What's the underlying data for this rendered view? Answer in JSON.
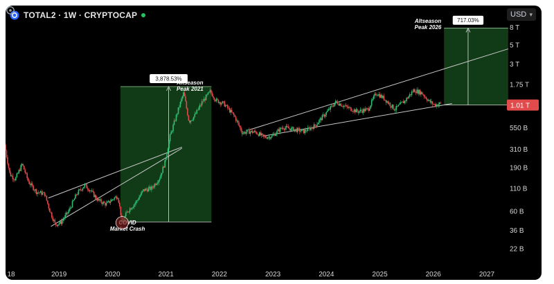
{
  "header": {
    "symbol_title": "TOTAL2 · 1W · CRYPTOCAP",
    "currency": "USD"
  },
  "chart_data": {
    "type": "candlestick",
    "title": "TOTAL2 · 1W · CRYPTOCAP",
    "y_scale": "log",
    "y_unit": "USD",
    "ylim": [
      15000000000,
      9500000000000
    ],
    "x_ticks": [
      "18",
      "2019",
      "2020",
      "2021",
      "2022",
      "2023",
      "2024",
      "2025",
      "2026",
      "2027"
    ],
    "y_ticks": [
      {
        "label": "8 T",
        "value": 8000000000000
      },
      {
        "label": "5 T",
        "value": 5000000000000
      },
      {
        "label": "3 T",
        "value": 3000000000000
      },
      {
        "label": "1.75 T",
        "value": 1750000000000
      },
      {
        "label": "550 B",
        "value": 550000000000
      },
      {
        "label": "310 B",
        "value": 310000000000
      },
      {
        "label": "190 B",
        "value": 190000000000
      },
      {
        "label": "110 B",
        "value": 110000000000
      },
      {
        "label": "60 B",
        "value": 60000000000
      },
      {
        "label": "36 B",
        "value": 36000000000
      },
      {
        "label": "22 B",
        "value": 22000000000
      }
    ],
    "current_price": {
      "label": "1.01 T",
      "value": 1010000000000
    },
    "price_path": [
      [
        2018.0,
        350000000000
      ],
      [
        2018.1,
        160000000000
      ],
      [
        2018.2,
        140000000000
      ],
      [
        2018.33,
        210000000000
      ],
      [
        2018.45,
        130000000000
      ],
      [
        2018.6,
        100000000000
      ],
      [
        2018.75,
        95000000000
      ],
      [
        2018.85,
        60000000000
      ],
      [
        2018.95,
        42000000000
      ],
      [
        2019.05,
        44000000000
      ],
      [
        2019.2,
        60000000000
      ],
      [
        2019.35,
        95000000000
      ],
      [
        2019.5,
        120000000000
      ],
      [
        2019.6,
        105000000000
      ],
      [
        2019.75,
        80000000000
      ],
      [
        2019.9,
        72000000000
      ],
      [
        2020.05,
        85000000000
      ],
      [
        2020.12,
        90000000000
      ],
      [
        2020.2,
        44000000000
      ],
      [
        2020.3,
        60000000000
      ],
      [
        2020.45,
        75000000000
      ],
      [
        2020.6,
        105000000000
      ],
      [
        2020.75,
        110000000000
      ],
      [
        2020.9,
        145000000000
      ],
      [
        2021.0,
        220000000000
      ],
      [
        2021.1,
        450000000000
      ],
      [
        2021.25,
        900000000000
      ],
      [
        2021.35,
        1400000000000
      ],
      [
        2021.45,
        650000000000
      ],
      [
        2021.55,
        750000000000
      ],
      [
        2021.7,
        1100000000000
      ],
      [
        2021.85,
        1450000000000
      ],
      [
        2021.95,
        1150000000000
      ],
      [
        2022.1,
        1050000000000
      ],
      [
        2022.3,
        750000000000
      ],
      [
        2022.45,
        480000000000
      ],
      [
        2022.55,
        500000000000
      ],
      [
        2022.7,
        490000000000
      ],
      [
        2022.85,
        430000000000
      ],
      [
        2023.0,
        440000000000
      ],
      [
        2023.2,
        560000000000
      ],
      [
        2023.4,
        530000000000
      ],
      [
        2023.6,
        500000000000
      ],
      [
        2023.8,
        580000000000
      ],
      [
        2024.0,
        800000000000
      ],
      [
        2024.2,
        1100000000000
      ],
      [
        2024.4,
        950000000000
      ],
      [
        2024.6,
        850000000000
      ],
      [
        2024.8,
        900000000000
      ],
      [
        2024.95,
        1400000000000
      ],
      [
        2025.1,
        1200000000000
      ],
      [
        2025.3,
        900000000000
      ],
      [
        2025.5,
        1150000000000
      ],
      [
        2025.65,
        1500000000000
      ],
      [
        2025.8,
        1400000000000
      ],
      [
        2025.95,
        1100000000000
      ],
      [
        2026.05,
        1010000000000
      ],
      [
        2026.15,
        1050000000000
      ]
    ],
    "channels": [
      {
        "from": [
          2018.85,
          40000000000
        ],
        "to": [
          2021.3,
          320000000000
        ]
      },
      {
        "from": [
          2018.8,
          85000000000
        ],
        "to": [
          2021.3,
          330000000000
        ]
      },
      {
        "from": [
          2022.55,
          520000000000
        ],
        "to": [
          2027.4,
          4500000000000
        ]
      },
      {
        "from": [
          2022.8,
          440000000000
        ],
        "to": [
          2026.35,
          1050000000000
        ]
      }
    ],
    "annotations": [
      {
        "kind": "box",
        "color": "green",
        "x": [
          2020.15,
          2021.85
        ],
        "y": [
          45000000000,
          1650000000000
        ],
        "label": "3,878.53%",
        "arrow_to": [
          2021.05,
          1650000000000
        ]
      },
      {
        "kind": "box",
        "color": "green",
        "x": [
          2026.2,
          2027.4
        ],
        "y": [
          1010000000000,
          7800000000000
        ],
        "label": "717.03%",
        "arrow_to": [
          2026.65,
          7800000000000
        ]
      },
      {
        "kind": "text",
        "at": [
          2021.45,
          1750000000000
        ],
        "lines": [
          "Altseason",
          "Peak 2021"
        ]
      },
      {
        "kind": "text",
        "at": [
          2025.9,
          9000000000000
        ],
        "lines": [
          "Altseason",
          "Peak 2026"
        ]
      },
      {
        "kind": "text",
        "at": [
          2020.28,
          42000000000
        ],
        "lines": [
          "COVID",
          "Market Crash"
        ]
      },
      {
        "kind": "circle",
        "at": [
          2020.18,
          44000000000
        ]
      }
    ]
  }
}
